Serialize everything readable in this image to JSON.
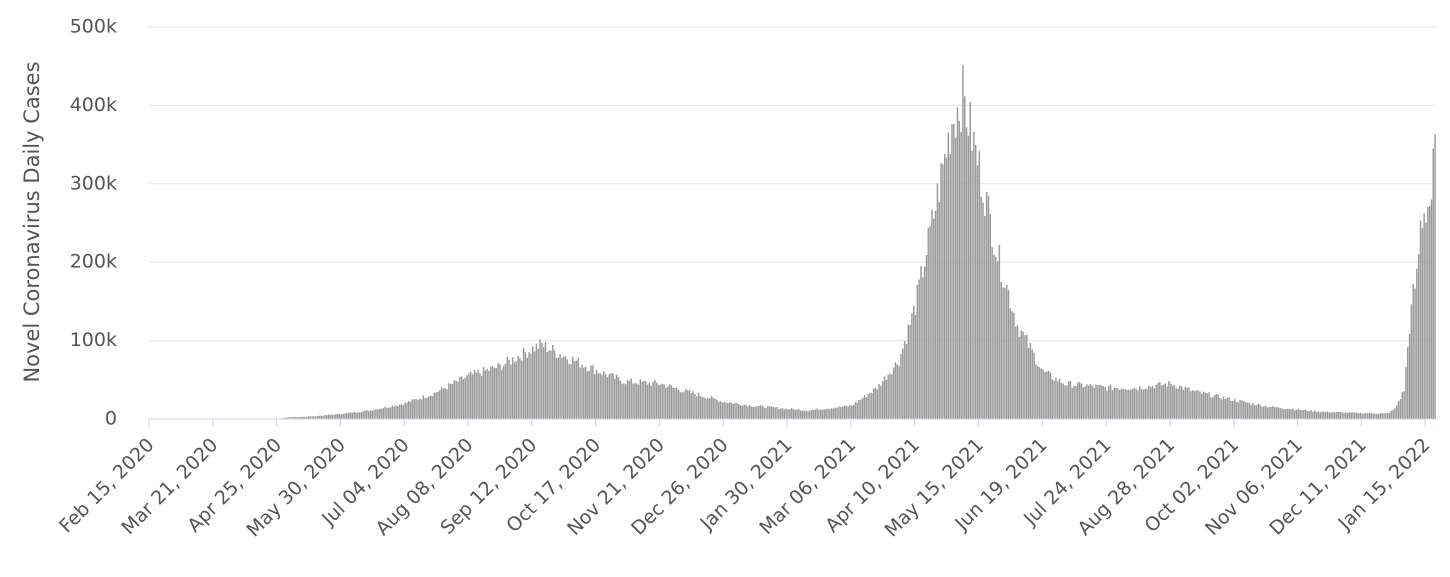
{
  "chart_data": {
    "type": "bar",
    "title": "",
    "xlabel": "",
    "ylabel": "Novel Coronavirus Daily Cases",
    "ylim": [
      0,
      500000
    ],
    "y_ticks": [
      {
        "value": 0,
        "label": "0"
      },
      {
        "value": 100000,
        "label": "100k"
      },
      {
        "value": 200000,
        "label": "200k"
      },
      {
        "value": 300000,
        "label": "300k"
      },
      {
        "value": 400000,
        "label": "400k"
      },
      {
        "value": 500000,
        "label": "500k"
      }
    ],
    "x_ticks": [
      "Feb 15, 2020",
      "Mar 21, 2020",
      "Apr 25, 2020",
      "May 30, 2020",
      "Jul 04, 2020",
      "Aug 08, 2020",
      "Sep 12, 2020",
      "Oct 17, 2020",
      "Nov 21, 2020",
      "Dec 26, 2020",
      "Jan 30, 2021",
      "Mar 06, 2021",
      "Apr 10, 2021",
      "May 15, 2021",
      "Jun 19, 2021",
      "Jul 24, 2021",
      "Aug 28, 2021",
      "Oct 02, 2021",
      "Nov 06, 2021",
      "Dec 11, 2021",
      "Jan 15, 2022"
    ],
    "x_range": [
      "Feb 15, 2020",
      "Jan 20, 2022"
    ],
    "series": [
      {
        "color": "#999999",
        "points": [
          [
            "Feb 15, 2020",
            0
          ],
          [
            "Apr 25, 2020",
            500
          ],
          [
            "May 01, 2020",
            2000
          ],
          [
            "May 15, 2020",
            3500
          ],
          [
            "May 30, 2020",
            6500
          ],
          [
            "Jun 15, 2020",
            11000
          ],
          [
            "Jul 04, 2020",
            20000
          ],
          [
            "Jul 20, 2020",
            33000
          ],
          [
            "Aug 08, 2020",
            55000
          ],
          [
            "Aug 25, 2020",
            67000
          ],
          [
            "Sep 12, 2020",
            90000
          ],
          [
            "Sep 17, 2020",
            95000
          ],
          [
            "Sep 25, 2020",
            85000
          ],
          [
            "Oct 17, 2020",
            62000
          ],
          [
            "Nov 01, 2020",
            48000
          ],
          [
            "Nov 21, 2020",
            45000
          ],
          [
            "Dec 01, 2020",
            38000
          ],
          [
            "Dec 26, 2020",
            22000
          ],
          [
            "Jan 10, 2021",
            17000
          ],
          [
            "Jan 30, 2021",
            13000
          ],
          [
            "Feb 10, 2021",
            11000
          ],
          [
            "Mar 06, 2021",
            17000
          ],
          [
            "Mar 20, 2021",
            40000
          ],
          [
            "Apr 01, 2021",
            75000
          ],
          [
            "Apr 10, 2021",
            145000
          ],
          [
            "Apr 20, 2021",
            260000
          ],
          [
            "Apr 30, 2021",
            380000
          ],
          [
            "May 06, 2021",
            412000
          ],
          [
            "May 15, 2021",
            320000
          ],
          [
            "May 25, 2021",
            210000
          ],
          [
            "Jun 05, 2021",
            120000
          ],
          [
            "Jun 19, 2021",
            60000
          ],
          [
            "Jul 01, 2021",
            45000
          ],
          [
            "Jul 24, 2021",
            40000
          ],
          [
            "Aug 10, 2021",
            40000
          ],
          [
            "Aug 28, 2021",
            45000
          ],
          [
            "Sep 10, 2021",
            35000
          ],
          [
            "Oct 02, 2021",
            24000
          ],
          [
            "Oct 20, 2021",
            16000
          ],
          [
            "Nov 06, 2021",
            12000
          ],
          [
            "Nov 20, 2021",
            9000
          ],
          [
            "Dec 11, 2021",
            7500
          ],
          [
            "Dec 25, 2021",
            7000
          ],
          [
            "Dec 29, 2021",
            13000
          ],
          [
            "Jan 01, 2022",
            27000
          ],
          [
            "Jan 03, 2022",
            37000
          ],
          [
            "Jan 06, 2022",
            118000
          ],
          [
            "Jan 08, 2022",
            159000
          ],
          [
            "Jan 10, 2022",
            180000
          ],
          [
            "Jan 12, 2022",
            247000
          ],
          [
            "Jan 14, 2022",
            265000
          ],
          [
            "Jan 16, 2022",
            271000
          ],
          [
            "Jan 18, 2022",
            282000
          ],
          [
            "Jan 19, 2022",
            317000
          ],
          [
            "Jan 20, 2022",
            347000
          ]
        ]
      }
    ],
    "grid": true,
    "legend": "none"
  }
}
